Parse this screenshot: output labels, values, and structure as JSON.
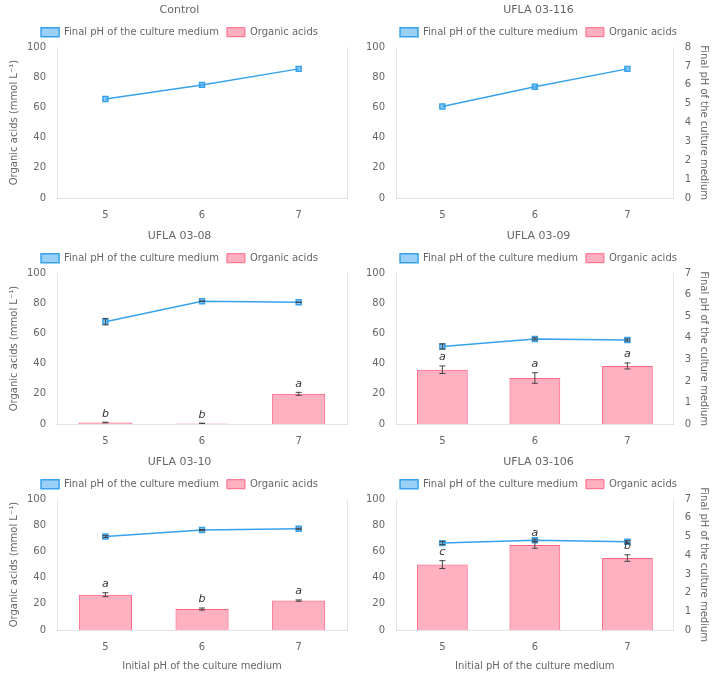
{
  "chart_data": [
    {
      "type": "bar",
      "title": "Control",
      "x": [
        5,
        6,
        7
      ],
      "xlim": [
        4.5,
        7.5
      ],
      "xticks": [
        5,
        6,
        7
      ],
      "ylim": [
        0,
        100
      ],
      "yticks": [
        0,
        20,
        40,
        60,
        80,
        100
      ],
      "y2lim": [
        0,
        8
      ],
      "ylabel": "Organic acids (mmol L⁻¹)",
      "grid": false,
      "legend": "top",
      "series": [
        {
          "name": "Final pH of the culture medium",
          "type": "line",
          "axis": "y2",
          "marker": "square",
          "values": [
            5.25,
            6.0,
            6.85
          ]
        },
        {
          "name": "Organic acids",
          "type": "bar",
          "values": [
            null,
            null,
            null
          ]
        }
      ]
    },
    {
      "type": "bar",
      "title": "UFLA 03-116",
      "x": [
        5,
        6,
        7
      ],
      "xlim": [
        4.5,
        7.5
      ],
      "xticks": [
        5,
        6,
        7
      ],
      "ylim": [
        0,
        100
      ],
      "yticks": [
        0,
        20,
        40,
        60,
        80,
        100
      ],
      "y2lim": [
        0,
        8
      ],
      "y2ticks": [
        0,
        1,
        2,
        3,
        4,
        5,
        6,
        7,
        8
      ],
      "y2label": "Final pH of the culture medium",
      "grid": false,
      "legend": "top",
      "series": [
        {
          "name": "Final pH of the culture medium",
          "type": "line",
          "axis": "y2",
          "marker": "square",
          "values": [
            4.85,
            5.9,
            6.85
          ]
        },
        {
          "name": "Organic acids",
          "type": "bar",
          "values": [
            null,
            null,
            null
          ]
        }
      ]
    },
    {
      "type": "bar",
      "title": "UFLA 03-08",
      "x": [
        5,
        6,
        7
      ],
      "xlim": [
        4.5,
        7.5
      ],
      "xticks": [
        5,
        6,
        7
      ],
      "ylim": [
        0,
        100
      ],
      "yticks": [
        0,
        20,
        40,
        60,
        80,
        100
      ],
      "y2lim": [
        0,
        7
      ],
      "ylabel": "Organic acids (mmol L⁻¹)",
      "grid": false,
      "legend": "top",
      "series": [
        {
          "name": "Final pH of the culture medium",
          "type": "line",
          "axis": "y2",
          "marker": "square",
          "values": [
            4.75,
            5.7,
            5.65
          ],
          "errors": [
            0.15,
            0.0,
            0.0
          ]
        },
        {
          "name": "Organic acids",
          "type": "bar",
          "values": [
            1.0,
            0.4,
            20.0
          ],
          "errors": [
            0.2,
            0.15,
            1.0
          ],
          "annotations": [
            "b",
            "b",
            "a"
          ]
        }
      ]
    },
    {
      "type": "bar",
      "title": "UFLA 03-09",
      "x": [
        5,
        6,
        7
      ],
      "xlim": [
        4.5,
        7.5
      ],
      "xticks": [
        5,
        6,
        7
      ],
      "ylim": [
        0,
        100
      ],
      "yticks": [
        0,
        20,
        40,
        60,
        80,
        100
      ],
      "y2lim": [
        0,
        7
      ],
      "y2ticks": [
        0,
        1,
        2,
        3,
        4,
        5,
        6,
        7
      ],
      "y2label": "Final pH of the culture medium",
      "grid": false,
      "legend": "top",
      "series": [
        {
          "name": "Final pH of the culture medium",
          "type": "line",
          "axis": "y2",
          "marker": "square",
          "values": [
            3.6,
            3.95,
            3.9
          ],
          "errors": [
            0.12,
            0.05,
            0.05
          ]
        },
        {
          "name": "Organic acids",
          "type": "bar",
          "values": [
            36.0,
            30.5,
            38.5
          ],
          "errors": [
            2.5,
            3.5,
            2.0
          ],
          "annotations": [
            "a",
            "a",
            "a"
          ]
        }
      ]
    },
    {
      "type": "bar",
      "title": "UFLA 03-10",
      "x": [
        5,
        6,
        7
      ],
      "xlim": [
        4.5,
        7.5
      ],
      "xticks": [
        5,
        6,
        7
      ],
      "ylim": [
        0,
        100
      ],
      "yticks": [
        0,
        20,
        40,
        60,
        80,
        100
      ],
      "y2lim": [
        0,
        7
      ],
      "xlabel": "Initial pH of the culture medium",
      "ylabel": "Organic acids (mmol L⁻¹)",
      "grid": false,
      "legend": "top",
      "series": [
        {
          "name": "Final pH of the culture medium",
          "type": "line",
          "axis": "y2",
          "marker": "square",
          "values": [
            5.0,
            5.35,
            5.42
          ],
          "errors": [
            0.05,
            0.03,
            0.03
          ]
        },
        {
          "name": "Organic acids",
          "type": "bar",
          "values": [
            27.0,
            16.0,
            22.5
          ],
          "errors": [
            1.5,
            0.8,
            0.5
          ],
          "annotations": [
            "a",
            "b",
            "a"
          ]
        }
      ]
    },
    {
      "type": "bar",
      "title": "UFLA 03-106",
      "x": [
        5,
        6,
        7
      ],
      "xlim": [
        4.5,
        7.5
      ],
      "xticks": [
        5,
        6,
        7
      ],
      "ylim": [
        0,
        100
      ],
      "yticks": [
        0,
        20,
        40,
        60,
        80,
        100
      ],
      "y2lim": [
        0,
        7
      ],
      "y2ticks": [
        0,
        1,
        2,
        3,
        4,
        5,
        6,
        7
      ],
      "xlabel": "Initial pH of the culture medium",
      "y2label": "Final pH of the culture medium",
      "grid": false,
      "legend": "top",
      "series": [
        {
          "name": "Final pH of the culture medium",
          "type": "line",
          "axis": "y2",
          "marker": "square",
          "values": [
            4.65,
            4.8,
            4.72
          ],
          "errors": [
            0.08,
            0.06,
            0.06
          ]
        },
        {
          "name": "Organic acids",
          "type": "bar",
          "values": [
            50.0,
            65.0,
            55.0
          ],
          "errors": [
            3.0,
            2.5,
            2.5
          ],
          "annotations": [
            "c",
            "a",
            "b"
          ]
        }
      ]
    }
  ]
}
